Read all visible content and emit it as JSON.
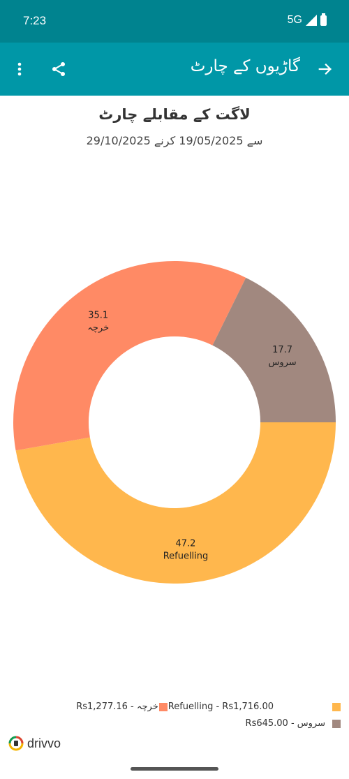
{
  "status": {
    "time": "7:23",
    "network": "5G"
  },
  "app_bar": {
    "title": "گاڑیوں کے چارٹ"
  },
  "chart_data": {
    "type": "pie",
    "title": "لاگت کے مقابلے چارٹ",
    "subtitle": "سے 19/05/2025 کرنے 29/10/2025",
    "slices": [
      {
        "name": "Refuelling",
        "value": 47.2,
        "amount": "Rs1,716.00",
        "color": "#ffb74d"
      },
      {
        "name": "خرچہ",
        "value": 35.1,
        "amount": "Rs1,277.16",
        "color": "#ff8a65"
      },
      {
        "name": "سروس",
        "value": 17.7,
        "amount": "Rs645.00",
        "color": "#a1887f"
      }
    ]
  },
  "legend": {
    "row1_left": "Rs1,277.16 - خرچہ",
    "row1_right": "Refuelling - Rs1,716.00",
    "row2": "Rs645.00 - سروس"
  },
  "brand": {
    "name": "drivvo"
  }
}
